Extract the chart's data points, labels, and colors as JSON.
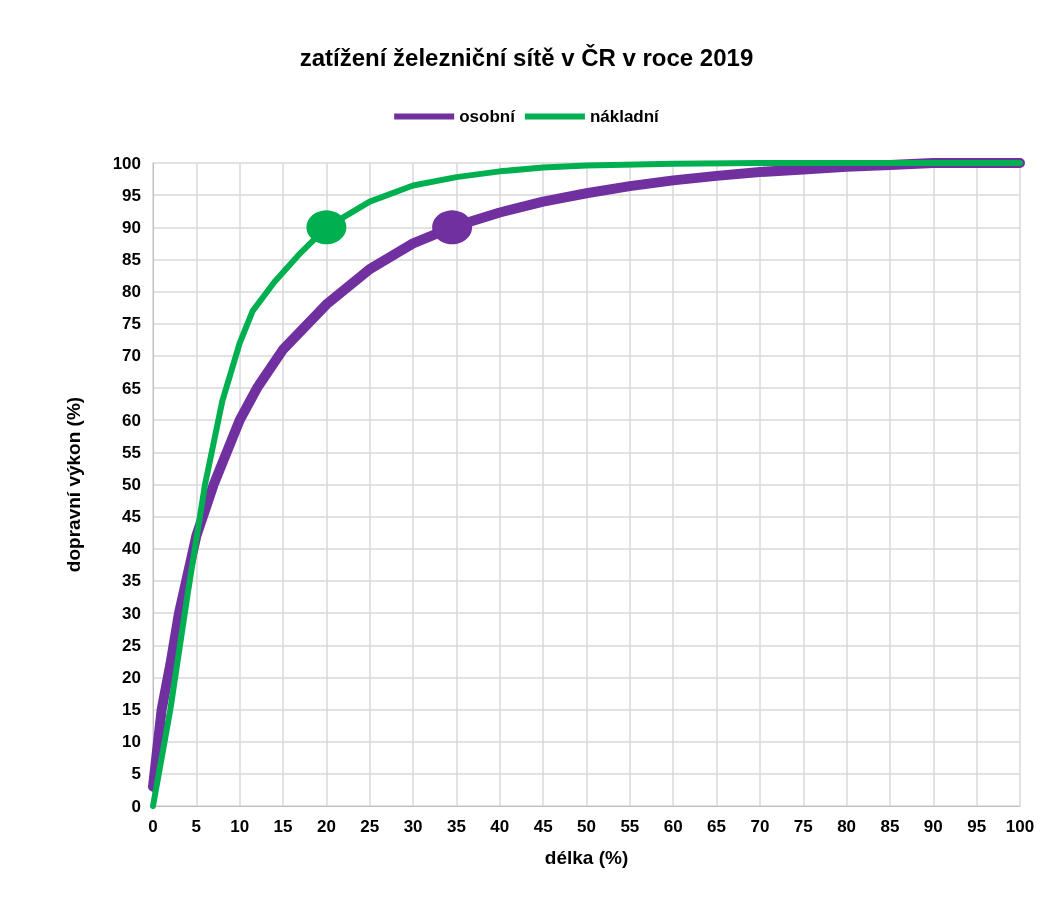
{
  "chart_data": {
    "type": "line",
    "title": "zatížení železniční sítě v ČR v roce 2019",
    "xlabel": "délka (%)",
    "ylabel": "dopravní výkon (%)",
    "series": [
      {
        "name": "osobní",
        "color": "#7030a0",
        "x": [
          0,
          1,
          2,
          3,
          5,
          7,
          10,
          12,
          15,
          20,
          25,
          30,
          34.5,
          40,
          45,
          50,
          55,
          60,
          65,
          70,
          75,
          80,
          85,
          90,
          100
        ],
        "values": [
          3,
          15,
          22,
          30,
          42,
          50,
          60,
          65,
          71,
          78,
          83.5,
          87.5,
          90,
          92.3,
          94,
          95.3,
          96.4,
          97.3,
          98,
          98.6,
          99,
          99.4,
          99.7,
          100,
          100
        ]
      },
      {
        "name": "nákladní",
        "color": "#00b050",
        "x": [
          0,
          2,
          4,
          6,
          8,
          10,
          11.5,
          14,
          17,
          20,
          25,
          30,
          35,
          40,
          45,
          50,
          60,
          70,
          100
        ],
        "values": [
          0,
          15,
          33,
          50,
          63,
          72,
          77,
          81.5,
          86,
          90,
          94,
          96.5,
          97.8,
          98.7,
          99.3,
          99.6,
          99.9,
          100,
          100
        ]
      },
      {
        "type": "scatter",
        "marker": "circle",
        "color": "#00b050",
        "x": [
          20
        ],
        "values": [
          90
        ]
      },
      {
        "type": "scatter",
        "marker": "circle",
        "color": "#7030a0",
        "x": [
          34.5
        ],
        "values": [
          90
        ]
      }
    ],
    "xlim": [
      0,
      100
    ],
    "xticks": [
      0,
      5,
      10,
      15,
      20,
      25,
      30,
      35,
      40,
      45,
      50,
      55,
      60,
      65,
      70,
      75,
      80,
      85,
      90,
      95,
      100
    ],
    "ylim": [
      0,
      100
    ],
    "yticks": [
      0,
      5,
      10,
      15,
      20,
      25,
      30,
      35,
      40,
      45,
      50,
      55,
      60,
      65,
      70,
      75,
      80,
      85,
      90,
      95,
      100
    ],
    "grid": true,
    "legend": "top",
    "marker": "none",
    "line_style": "solid"
  }
}
